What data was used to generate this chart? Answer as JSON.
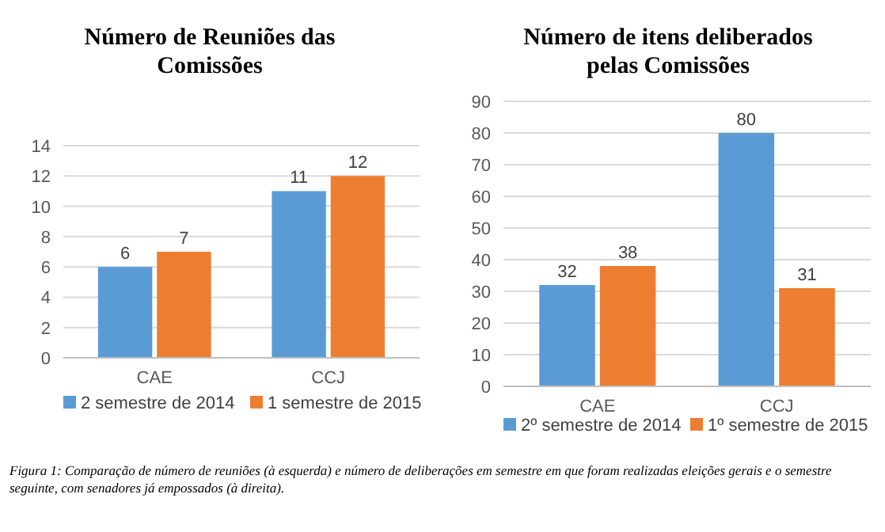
{
  "chart_data": [
    {
      "type": "bar",
      "title": "Número de Reuniões das Comissões",
      "categories": [
        "CAE",
        "CCJ"
      ],
      "series": [
        {
          "name": "2 semestre de 2014",
          "color": "#5b9bd5",
          "values": [
            6,
            11
          ]
        },
        {
          "name": "1 semestre de 2015",
          "color": "#ed7d31",
          "values": [
            7,
            12
          ]
        }
      ],
      "ylim": [
        0,
        14
      ],
      "yticks": [
        0,
        2,
        4,
        6,
        8,
        10,
        12,
        14
      ],
      "grid": "y",
      "legend": "bottom",
      "data_labels": true,
      "annotations": [
        "Figura 1: Comparação de número de reuniões (à esquerda) e número de deliberações em semestre em que foram realizadas eleições gerais e o semestre seguinte, com senadores já empossados (à direita)."
      ]
    },
    {
      "type": "bar",
      "title": "Número de itens deliberados pelas Comissões",
      "categories": [
        "CAE",
        "CCJ"
      ],
      "series": [
        {
          "name": "2º semestre de 2014",
          "color": "#5b9bd5",
          "values": [
            32,
            80
          ]
        },
        {
          "name": "1º semestre de 2015",
          "color": "#ed7d31",
          "values": [
            38,
            31
          ]
        }
      ],
      "ylim": [
        0,
        90
      ],
      "yticks": [
        0,
        10,
        20,
        30,
        40,
        50,
        60,
        70,
        80,
        90
      ],
      "grid": "y",
      "legend": "bottom",
      "data_labels": true
    }
  ]
}
